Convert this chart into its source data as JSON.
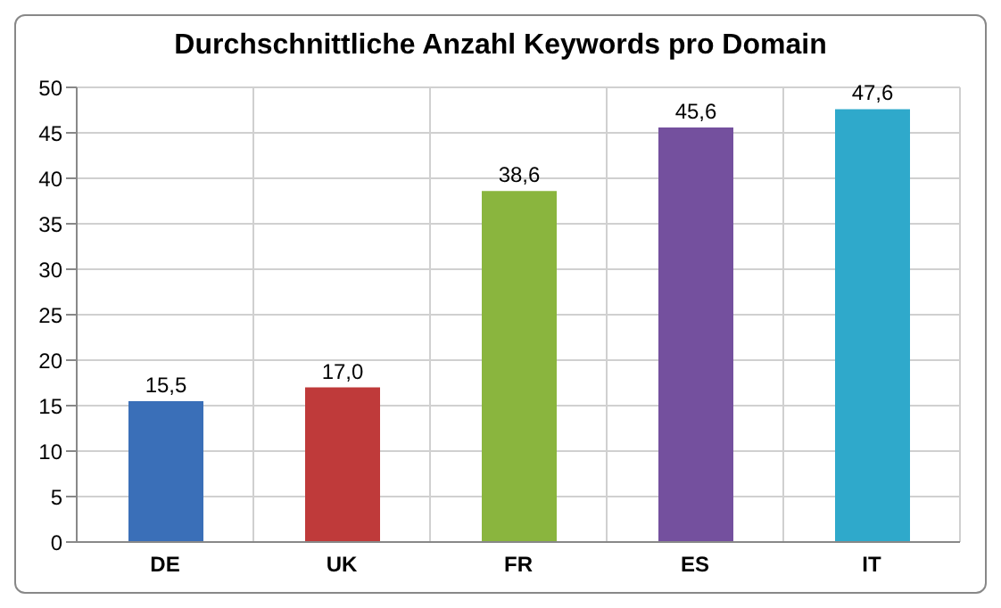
{
  "chart_data": {
    "type": "bar",
    "title": "Durchschnittliche Anzahl Keywords pro Domain",
    "categories": [
      "DE",
      "UK",
      "FR",
      "ES",
      "IT"
    ],
    "values": [
      15.5,
      17.0,
      38.6,
      45.6,
      47.6
    ],
    "value_labels": [
      "15,5",
      "17,0",
      "38,6",
      "45,6",
      "47,6"
    ],
    "colors": [
      "#3a6fb8",
      "#bf3a3a",
      "#8ab53e",
      "#74509e",
      "#2fa9cb"
    ],
    "ylim": [
      0,
      50
    ],
    "yticks": [
      0,
      5,
      10,
      15,
      20,
      25,
      30,
      35,
      40,
      45,
      50
    ],
    "grid": true
  }
}
